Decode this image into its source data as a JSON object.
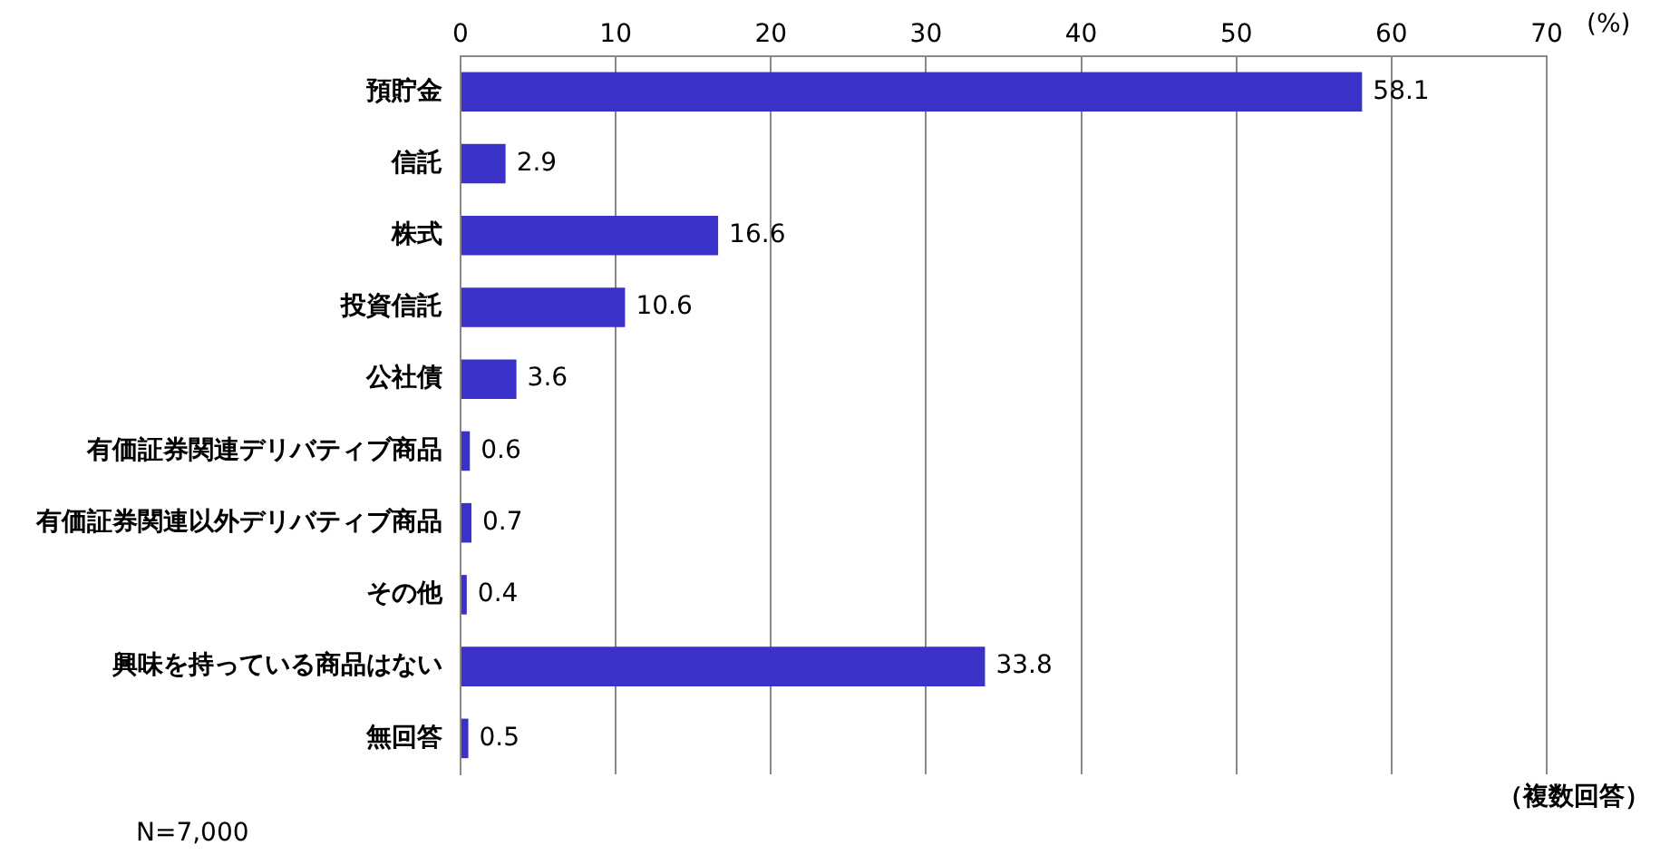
{
  "chart_data": {
    "type": "bar",
    "orientation": "horizontal",
    "categories": [
      "預貯金",
      "信託",
      "株式",
      "投資信託",
      "公社債",
      "有価証券関連デリバティブ商品",
      "有価証券関連以外デリバティブ商品",
      "その他",
      "興味を持っている商品はない",
      "無回答"
    ],
    "values": [
      58.1,
      2.9,
      16.6,
      10.6,
      3.6,
      0.6,
      0.7,
      0.4,
      33.8,
      0.5
    ],
    "color": "#3a32c8",
    "xlim": [
      0,
      70
    ],
    "xticks": [
      0,
      10,
      20,
      30,
      40,
      50,
      60,
      70
    ],
    "xlabel": "(%)",
    "grid": "x",
    "legend": false,
    "data_labels": true,
    "annotations": [
      "N=7,000",
      "（複数回答）"
    ]
  }
}
